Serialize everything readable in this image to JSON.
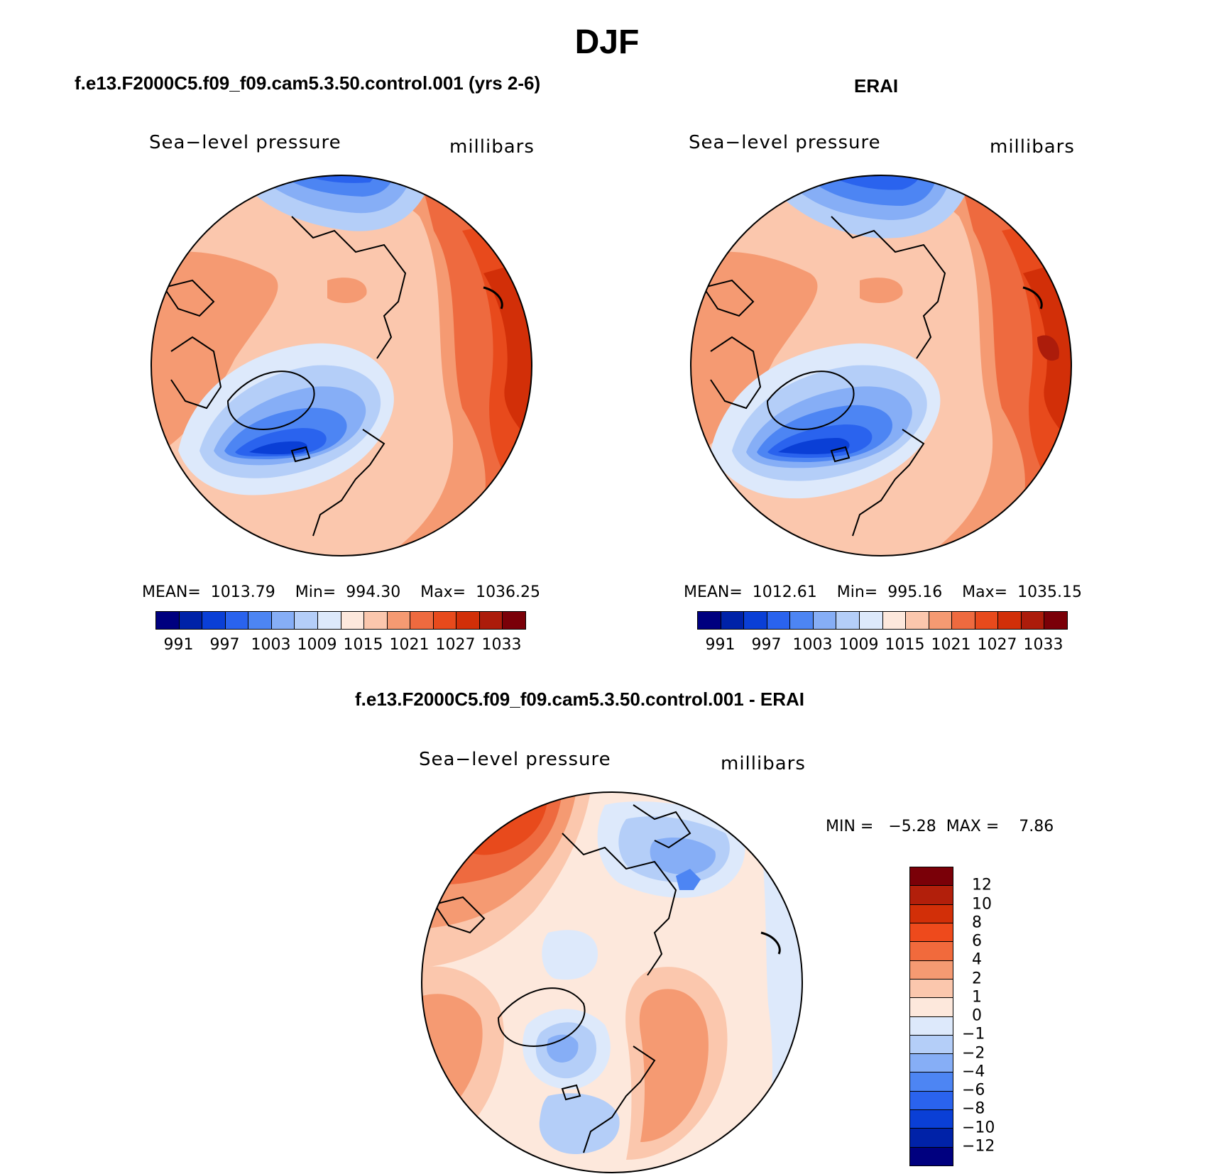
{
  "title": "DJF",
  "panels": [
    {
      "title": "f.e13.F2000C5.f09_f09.cam5.3.50.control.001 (yrs 2-6)",
      "variable": "Sea−level pressure",
      "units": "millibars",
      "stats": "MEAN=  1013.79    Min=  994.30    Max=  1036.25",
      "colorbar": {
        "colors": [
          "#00007f",
          "#0022a8",
          "#0a3fd6",
          "#2a63ee",
          "#4d85f3",
          "#86aef6",
          "#b4cef8",
          "#dde9fb",
          "#fde8dc",
          "#fbc7ad",
          "#f59a72",
          "#ee6a3f",
          "#e84a1c",
          "#d22f08",
          "#ac1c0b",
          "#7a0008"
        ],
        "tick_labels": [
          "991",
          "997",
          "1003",
          "1009",
          "1015",
          "1021",
          "1027",
          "1033"
        ]
      }
    },
    {
      "title": "ERAI",
      "variable": "Sea−level pressure",
      "units": "millibars",
      "stats": "MEAN=  1012.61    Min=  995.16    Max=  1035.15",
      "colorbar": {
        "colors": [
          "#00007f",
          "#0022a8",
          "#0a3fd6",
          "#2a63ee",
          "#4d85f3",
          "#86aef6",
          "#b4cef8",
          "#dde9fb",
          "#fde8dc",
          "#fbc7ad",
          "#f59a72",
          "#ee6a3f",
          "#e84a1c",
          "#d22f08",
          "#ac1c0b",
          "#7a0008"
        ],
        "tick_labels": [
          "991",
          "997",
          "1003",
          "1009",
          "1015",
          "1021",
          "1027",
          "1033"
        ]
      }
    },
    {
      "title": "f.e13.F2000C5.f09_f09.cam5.3.50.control.001 - ERAI",
      "variable": "Sea−level pressure",
      "units": "millibars",
      "stats": "MIN =   −5.28  MAX =    7.86",
      "colorbar": {
        "colors": [
          "#7a0008",
          "#b21f0b",
          "#d22f08",
          "#ee4a1c",
          "#f16a3c",
          "#f59a72",
          "#fbc7ad",
          "#fde8dc",
          "#dde9fb",
          "#b4cef8",
          "#86aef6",
          "#4d85f3",
          "#2a63ee",
          "#0a3fd6",
          "#0022a8",
          "#00007f"
        ],
        "tick_labels": [
          "12",
          "10",
          "8",
          "6",
          "4",
          "2",
          "1",
          "0",
          "−1",
          "−2",
          "−4",
          "−6",
          "−8",
          "−10",
          "−12"
        ]
      }
    }
  ]
}
